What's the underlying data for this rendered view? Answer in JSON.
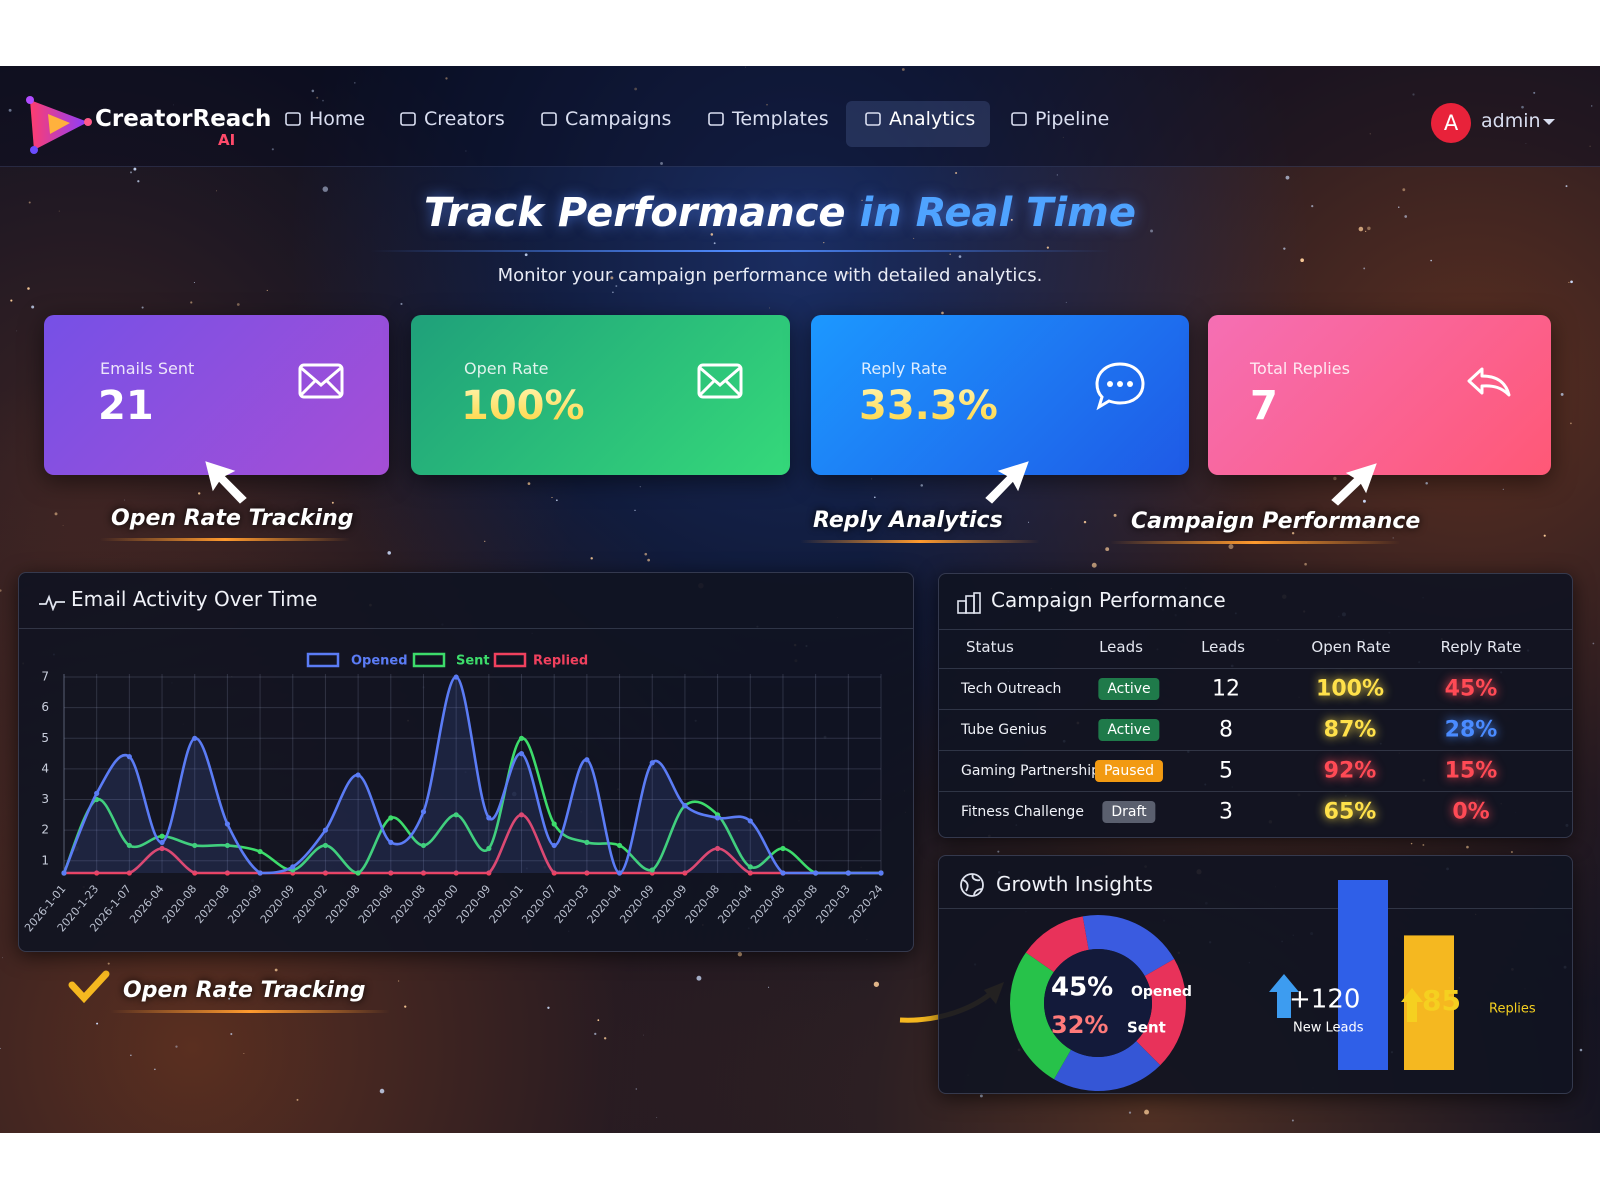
{
  "nav": {
    "brand": "CreatorReach",
    "brand_suffix": "AI",
    "items": [
      "Home",
      "Creators",
      "Campaigns",
      "Templates",
      "Analytics",
      "Pipeline"
    ],
    "active": 4,
    "user_initial": "A",
    "user": "admin"
  },
  "hero": {
    "title": "Track Performance",
    "title_highlight": "in Real Time",
    "subtitle": "Monitor your campaign performance with detailed analytics."
  },
  "stats": [
    {
      "label": "Emails Sent",
      "value": "21"
    },
    {
      "label": "Open Rate",
      "value": "100%"
    },
    {
      "label": "Reply Rate",
      "value": "33.3%"
    },
    {
      "label": "Total Replies",
      "value": "7"
    }
  ],
  "callouts": [
    "Open Rate Tracking",
    "Reply Analytics",
    "Campaign Performance",
    "Open Rate Tracking"
  ],
  "activity_chart": {
    "type": "line",
    "title": "Email Activity Over Time",
    "x": [
      "2026-1-01",
      "2020-1-23",
      "2026-1-07",
      "2026-04",
      "2020-08",
      "2020-08",
      "2020-09",
      "2020-09",
      "2020-02",
      "2020-08",
      "2020-08",
      "2020-08",
      "2020-00",
      "2020-09",
      "2020-01",
      "2020-07",
      "2020-03",
      "2020-04",
      "2020-09",
      "2020-09",
      "2020-08",
      "2020-04",
      "2020-08",
      "2020-08",
      "2020-03",
      "2020-24"
    ],
    "series": [
      {
        "name": "Opened",
        "color": "#5b7cf5",
        "values": [
          0.6,
          3.2,
          4.4,
          1.6,
          5.0,
          2.2,
          0.6,
          0.8,
          2.0,
          3.8,
          1.6,
          2.6,
          7.0,
          2.4,
          4.5,
          1.5,
          4.3,
          0.6,
          4.2,
          2.8,
          2.4,
          2.3,
          0.6,
          0.6,
          0.6,
          0.6
        ]
      },
      {
        "name": "Sent",
        "color": "#3ddc6b",
        "values": [
          0.6,
          3.0,
          1.5,
          1.8,
          1.5,
          1.5,
          1.3,
          0.7,
          1.5,
          0.6,
          2.4,
          1.5,
          2.5,
          1.4,
          5.0,
          2.2,
          1.6,
          1.5,
          0.7,
          2.8,
          2.5,
          0.8,
          1.4,
          0.6,
          0.6,
          0.6
        ]
      },
      {
        "name": "Replied",
        "color": "#f0415e",
        "values": [
          0.6,
          0.6,
          0.6,
          1.4,
          0.6,
          0.6,
          0.6,
          0.6,
          0.6,
          0.6,
          0.6,
          0.6,
          0.6,
          0.6,
          2.5,
          0.6,
          0.6,
          0.6,
          0.6,
          0.6,
          1.4,
          0.6,
          0.6,
          0.6,
          0.6,
          0.6
        ]
      }
    ],
    "ylim": [
      0.6,
      7.1
    ],
    "yticks": [
      1,
      2,
      3,
      4,
      5,
      6,
      7
    ],
    "grid": true
  },
  "campaign_table": {
    "title": "Campaign Performance",
    "columns": [
      "Status",
      "Leads",
      "Leads",
      "Open Rate",
      "Reply Rate"
    ],
    "rows": [
      {
        "name": "Tech Outreach",
        "status": "Active",
        "status_color": "#1f7a4a",
        "leads": "12",
        "open_rate": "100%",
        "open_color": "#ffe14a",
        "reply_rate": "45%",
        "reply_color": "#ff4a55"
      },
      {
        "name": "Tube Genius",
        "status": "Active",
        "status_color": "#1f7a4a",
        "leads": "8",
        "open_rate": "87%",
        "open_color": "#ffe14a",
        "reply_rate": "28%",
        "reply_color": "#4a8bff"
      },
      {
        "name": "Gaming Partnership",
        "status": "Paused",
        "status_color": "#f29a12",
        "leads": "5",
        "open_rate": "92%",
        "open_color": "#ff4a55",
        "reply_rate": "15%",
        "reply_color": "#ff4a55"
      },
      {
        "name": "Fitness Challenge",
        "status": "Draft",
        "status_color": "#5a5f6e",
        "leads": "3",
        "open_rate": "65%",
        "open_color": "#ffe14a",
        "reply_rate": "0%",
        "reply_color": "#ff4a55"
      }
    ]
  },
  "growth": {
    "title": "Growth Insights",
    "donut": {
      "opened": "45%",
      "opened_label": "Opened",
      "sent": "32%",
      "sent_label": "Sent"
    },
    "bars": [
      {
        "value": 120,
        "value_label": "+120",
        "label": "New Leads",
        "color": "#2f5fe8"
      },
      {
        "value": 85,
        "label": "Replies",
        "color": "#f5b820"
      }
    ]
  }
}
